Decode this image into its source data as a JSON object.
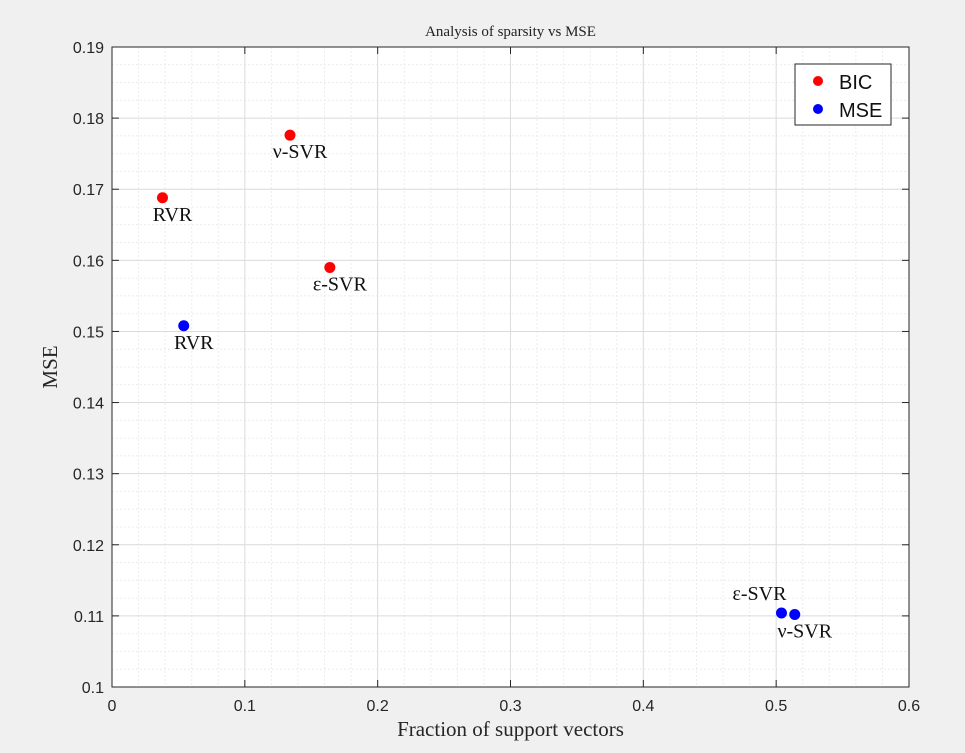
{
  "chart_data": {
    "type": "scatter",
    "title": "Analysis of sparsity vs MSE",
    "xlabel": "Fraction of support vectors",
    "ylabel": "MSE",
    "xlim": [
      0,
      0.6
    ],
    "ylim": [
      0.1,
      0.19
    ],
    "xticks": [
      0,
      0.1,
      0.2,
      0.3,
      0.4,
      0.5,
      0.6
    ],
    "xtick_labels": [
      "0",
      "0.1",
      "0.2",
      "0.3",
      "0.4",
      "0.5",
      "0.6"
    ],
    "yticks": [
      0.1,
      0.11,
      0.12,
      0.13,
      0.14,
      0.15,
      0.16,
      0.17,
      0.18,
      0.19
    ],
    "ytick_labels": [
      "0.1",
      "0.11",
      "0.12",
      "0.13",
      "0.14",
      "0.15",
      "0.16",
      "0.17",
      "0.18",
      "0.19"
    ],
    "grid": true,
    "minor_grid": true,
    "legend_position": "top-right",
    "series": [
      {
        "name": "BIC",
        "color": "#ff0000",
        "points": [
          {
            "x": 0.038,
            "y": 0.1688,
            "label": "RVR"
          },
          {
            "x": 0.134,
            "y": 0.1776,
            "label": "ν-SVR"
          },
          {
            "x": 0.164,
            "y": 0.159,
            "label": "ε-SVR"
          }
        ]
      },
      {
        "name": "MSE",
        "color": "#0000ff",
        "points": [
          {
            "x": 0.054,
            "y": 0.1508,
            "label": "RVR"
          },
          {
            "x": 0.504,
            "y": 0.1104,
            "label": "ε-SVR"
          },
          {
            "x": 0.514,
            "y": 0.1102,
            "label": "ν-SVR"
          }
        ]
      }
    ]
  }
}
